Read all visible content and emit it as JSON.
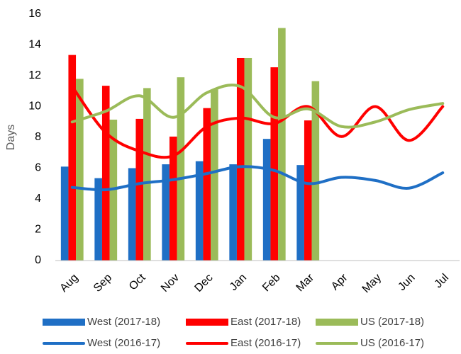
{
  "chart_data": {
    "type": "combo",
    "y_label": "Days",
    "categories": [
      "Aug",
      "Sep",
      "Oct",
      "Nov",
      "Dec",
      "Jan",
      "Feb",
      "Mar",
      "Apr",
      "May",
      "Jun",
      "Jul"
    ],
    "ylim": [
      0,
      16
    ],
    "yticks": [
      0,
      2,
      4,
      6,
      8,
      10,
      12,
      14,
      16
    ],
    "grid": false,
    "legend": "bottom",
    "series": [
      {
        "name": "West (2017-18)",
        "type": "bar",
        "color": "#1f6fc5",
        "values": [
          6.1,
          5.35,
          6.0,
          6.25,
          6.45,
          6.25,
          7.9,
          6.2,
          null,
          null,
          null,
          null
        ]
      },
      {
        "name": "East (2017-18)",
        "type": "bar",
        "color": "#ff0000",
        "values": [
          13.35,
          11.35,
          9.2,
          8.05,
          9.9,
          13.15,
          12.55,
          9.1,
          null,
          null,
          null,
          null
        ]
      },
      {
        "name": "US (2017-18)",
        "type": "bar",
        "color": "#9bbb59",
        "values": [
          11.8,
          9.15,
          11.2,
          11.9,
          11.1,
          13.15,
          15.1,
          11.65,
          null,
          null,
          null,
          null
        ]
      },
      {
        "name": "West (2016-17)",
        "type": "line",
        "color": "#1f6fc5",
        "values": [
          4.75,
          4.6,
          5.0,
          5.25,
          5.65,
          6.1,
          5.85,
          5.0,
          5.4,
          5.2,
          4.7,
          5.7
        ]
      },
      {
        "name": "East (2016-17)",
        "type": "line",
        "color": "#ff0000",
        "values": [
          11.3,
          8.3,
          7.1,
          6.8,
          8.7,
          9.25,
          8.9,
          10.0,
          8.05,
          10.0,
          7.8,
          10.0
        ]
      },
      {
        "name": "US (2016-17)",
        "type": "line",
        "color": "#9bbb59",
        "values": [
          9.0,
          9.7,
          10.7,
          9.3,
          10.9,
          11.3,
          9.3,
          9.85,
          8.7,
          9.0,
          9.8,
          10.2
        ]
      }
    ]
  }
}
